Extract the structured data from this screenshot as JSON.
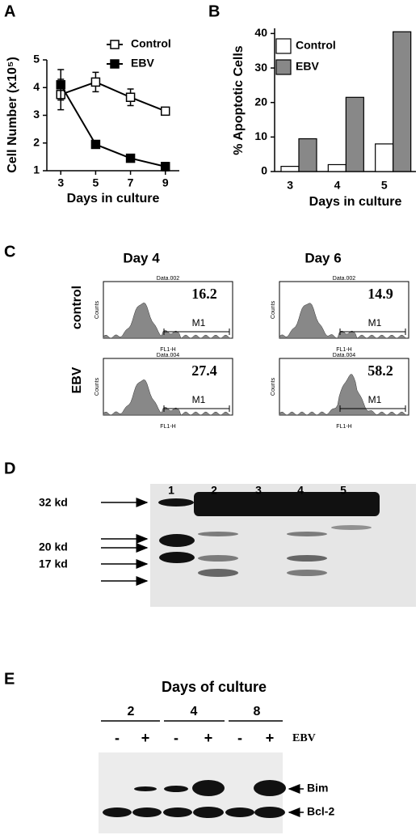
{
  "chart_data": [
    {
      "type": "line",
      "panel": "A",
      "x": [
        3,
        5,
        7,
        9
      ],
      "xlim": [
        2.2,
        9.8
      ],
      "xticks": [
        3,
        5,
        7,
        9
      ],
      "ylim": [
        1,
        5
      ],
      "yticks": [
        1,
        2,
        3,
        4,
        5
      ],
      "x_label": "Days in culture",
      "y_label": "Cell Number (x10⁵)",
      "series": [
        {
          "name": "Control",
          "color": "#ffffff",
          "values": [
            3.75,
            4.2,
            3.65,
            3.15
          ],
          "errors": [
            0.55,
            0.35,
            0.3,
            0.05
          ]
        },
        {
          "name": "EBV",
          "color": "#000000",
          "values": [
            4.1,
            1.95,
            1.45,
            1.15
          ],
          "errors": [
            0.55,
            0.05,
            0.05,
            0.15
          ]
        }
      ]
    },
    {
      "type": "bar",
      "panel": "B",
      "categories": [
        "3",
        "4",
        "5"
      ],
      "ylim": [
        0,
        41.5
      ],
      "yticks": [
        0,
        10,
        20,
        30,
        40
      ],
      "x_label": "Days in culture",
      "y_label": "% Apoptotic Cells",
      "series": [
        {
          "name": "Control",
          "color": "#ffffff",
          "values": [
            1.5,
            2,
            8
          ]
        },
        {
          "name": "EBV",
          "color": "#888888",
          "values": [
            9.5,
            21.5,
            40.5
          ]
        }
      ]
    }
  ],
  "panel_c": {
    "letter": "C",
    "columns": [
      "Day 4",
      "Day 6"
    ],
    "rows": [
      "control",
      "EBV"
    ],
    "plots": [
      {
        "file": "Data.002",
        "value": "16.2"
      },
      {
        "file": "Data.002",
        "value": "14.9"
      },
      {
        "file": "Data.004",
        "value": "27.4"
      },
      {
        "file": "Data.004",
        "value": "58.2"
      }
    ],
    "marker": "M1",
    "x_axis": "FL1-H",
    "y_axis": "Counts"
  },
  "panel_d": {
    "letter": "D",
    "lanes": [
      "1",
      "2",
      "3",
      "4",
      "5"
    ],
    "markers": [
      "32 kd",
      "20 kd",
      "17 kd"
    ]
  },
  "panel_e": {
    "letter": "E",
    "title": "Days of culture",
    "days": [
      "2",
      "4",
      "8"
    ],
    "treatment": [
      "-",
      "+",
      "-",
      "+",
      "-",
      "+"
    ],
    "treatment_label": "EBV",
    "bands": [
      "Bim",
      "Bcl-2"
    ]
  }
}
